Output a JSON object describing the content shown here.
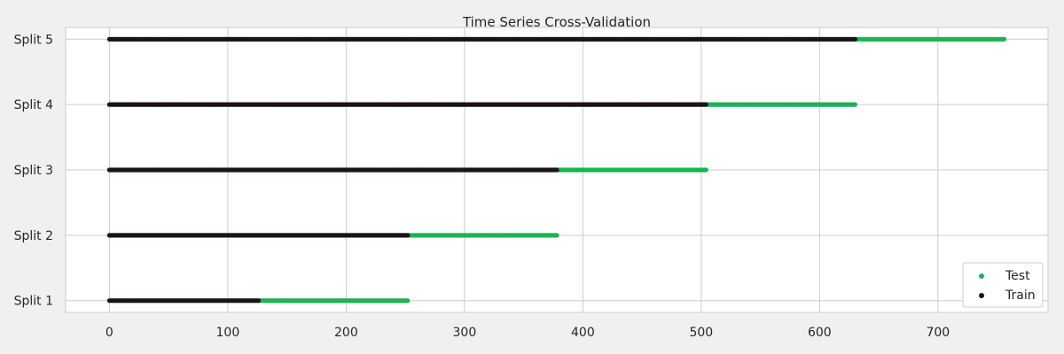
{
  "chart_data": {
    "type": "scatter",
    "title": "Time Series Cross-Validation",
    "xlabel": "",
    "ylabel": "",
    "xlim": [
      -37,
      793
    ],
    "xticks": [
      0,
      100,
      200,
      300,
      400,
      500,
      600,
      700
    ],
    "ylim": [
      0.82,
      5.18
    ],
    "categories": [
      "Split 1",
      "Split 2",
      "Split 3",
      "Split 4",
      "Split 5"
    ],
    "grid": true,
    "legend": {
      "position": "bottom-right",
      "entries": [
        "Test",
        "Train"
      ]
    },
    "colors": {
      "Test": "#1db353",
      "Train": "#1a1416"
    },
    "splits": [
      {
        "name": "Split 1",
        "train": [
          0,
          126
        ],
        "test": [
          127,
          252
        ]
      },
      {
        "name": "Split 2",
        "train": [
          0,
          252
        ],
        "test": [
          253,
          378
        ]
      },
      {
        "name": "Split 3",
        "train": [
          0,
          378
        ],
        "test": [
          379,
          504
        ]
      },
      {
        "name": "Split 4",
        "train": [
          0,
          504
        ],
        "test": [
          505,
          630
        ]
      },
      {
        "name": "Split 5",
        "train": [
          0,
          630
        ],
        "test": [
          631,
          756
        ]
      }
    ]
  }
}
